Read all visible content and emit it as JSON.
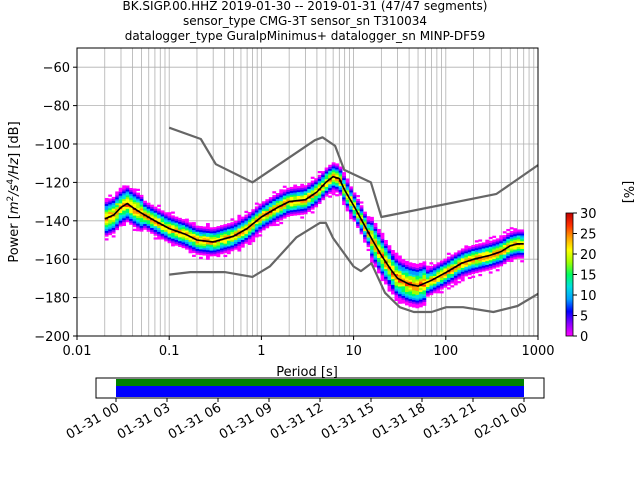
{
  "chart_data": {
    "type": "heatmap",
    "title_lines": [
      "BK.SIGP.00.HHZ   2019-01-30 -- 2019-01-31  (47/47 segments)",
      "sensor_type CMG-3T sensor_sn T310034",
      "datalogger_type GuralpMinimus+ datalogger_sn MINP-DF59"
    ],
    "xlabel": "Period [s]",
    "ylabel_parts": {
      "a": "Power [",
      "b": "m",
      "c": "2",
      "d": "/s",
      "e": "4",
      "f": "/Hz",
      "g": "] [dB]"
    },
    "x_scale": "log",
    "xlim": [
      0.01,
      1000
    ],
    "ylim": [
      -200,
      -50
    ],
    "x_tick_labels": [
      "0.01",
      "0.1",
      "1",
      "10",
      "100",
      "1000"
    ],
    "y_tick_values": [
      -200,
      -180,
      -160,
      -140,
      -120,
      -100,
      -80,
      -60
    ],
    "y_tick_labels": [
      "−200",
      "−180",
      "−160",
      "−140",
      "−120",
      "−100",
      "−80",
      "−60"
    ],
    "grid": true,
    "colorbar": {
      "label": "[%]",
      "range": [
        0,
        30
      ],
      "tick_labels": [
        "0",
        "5",
        "10",
        "15",
        "20",
        "25",
        "30"
      ],
      "tick_values": [
        0,
        5,
        10,
        15,
        20,
        25,
        30
      ]
    },
    "series": [
      {
        "role": "new-high-noise-model",
        "color": "#666666",
        "x": [
          0.1,
          0.22,
          0.32,
          0.8,
          3.8,
          4.6,
          6.3,
          7.9,
          15.4,
          20,
          354.8,
          1000
        ],
        "y": [
          -91.5,
          -97.4,
          -110.5,
          -120,
          -98,
          -96.5,
          -101,
          -113.5,
          -120,
          -138,
          -126,
          -111
        ]
      },
      {
        "role": "new-low-noise-model",
        "color": "#666666",
        "x": [
          0.1,
          0.17,
          0.4,
          0.8,
          1.24,
          2.4,
          4.3,
          5,
          6,
          10,
          12,
          15.6,
          21.9,
          31.6,
          45,
          70,
          101,
          154,
          328,
          600,
          1000
        ],
        "y": [
          -168,
          -166.7,
          -166.7,
          -169.2,
          -163.7,
          -148.6,
          -141.1,
          -141.1,
          -149,
          -163.8,
          -166.2,
          -162.1,
          -177.5,
          -185,
          -187.5,
          -187.5,
          -185,
          -185,
          -187.5,
          -184.4,
          -178
        ]
      },
      {
        "role": "mode",
        "color": "#000000",
        "x": [
          0.02,
          0.025,
          0.03,
          0.035,
          0.04,
          0.05,
          0.07,
          0.1,
          0.15,
          0.2,
          0.3,
          0.5,
          0.7,
          1,
          1.5,
          2,
          3,
          4,
          5,
          6,
          7,
          8,
          10,
          13,
          16,
          20,
          25,
          30,
          40,
          50,
          70,
          100,
          150,
          200,
          300,
          400,
          500,
          600,
          700
        ],
        "y": [
          -139,
          -137,
          -133,
          -131,
          -133,
          -136,
          -140,
          -144,
          -147,
          -150,
          -151,
          -148,
          -144,
          -138,
          -133,
          -130,
          -129,
          -125,
          -120,
          -117,
          -118,
          -124,
          -132,
          -142,
          -150,
          -158,
          -165,
          -170,
          -173,
          -174,
          -171,
          -167,
          -162,
          -160,
          -158,
          -156,
          -153,
          -152,
          -152
        ]
      }
    ],
    "density_color_stops": [
      "#ff00ff",
      "#8a00ff",
      "#0000ff",
      "#00a0ff",
      "#00e0e0",
      "#00ff60",
      "#a0ff00",
      "#ffff00",
      "#ffa000",
      "#ff3000",
      "#c00000"
    ]
  },
  "timeline": {
    "tick_labels": [
      "01-31 00",
      "01-31 03",
      "01-31 06",
      "01-31 09",
      "01-31 12",
      "01-31 15",
      "01-31 18",
      "01-31 21",
      "02-01 00"
    ],
    "bar_colors": {
      "top": "#008000",
      "bottom": "#0000ff"
    },
    "coverage_fraction": 1.0
  }
}
